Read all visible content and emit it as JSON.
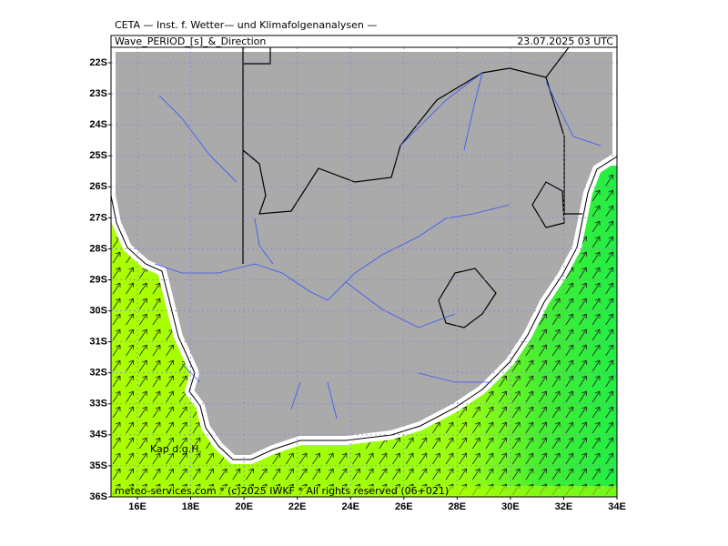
{
  "header": {
    "institute": "CETA — Inst. f. Wetter— und Klimafolgenanalysen —",
    "title": "Wave_PERIOD_[s]_&_Direction",
    "datetime": "23.07.2025 03 UTC"
  },
  "map": {
    "lat_ticks": [
      {
        "value": 22,
        "label": "22S"
      },
      {
        "value": 23,
        "label": "23S"
      },
      {
        "value": 24,
        "label": "24S"
      },
      {
        "value": 25,
        "label": "25S"
      },
      {
        "value": 26,
        "label": "26S"
      },
      {
        "value": 27,
        "label": "27S"
      },
      {
        "value": 28,
        "label": "28S"
      },
      {
        "value": 29,
        "label": "29S"
      },
      {
        "value": 30,
        "label": "30S"
      },
      {
        "value": 31,
        "label": "31S"
      },
      {
        "value": 32,
        "label": "32S"
      },
      {
        "value": 33,
        "label": "33S"
      },
      {
        "value": 34,
        "label": "34S"
      },
      {
        "value": 35,
        "label": "35S"
      },
      {
        "value": 36,
        "label": "36S"
      }
    ],
    "lon_ticks": [
      {
        "value": 16,
        "label": "16E"
      },
      {
        "value": 18,
        "label": "18E"
      },
      {
        "value": 20,
        "label": "20E"
      },
      {
        "value": 22,
        "label": "22E"
      },
      {
        "value": 24,
        "label": "24E"
      },
      {
        "value": 26,
        "label": "26E"
      },
      {
        "value": 28,
        "label": "28E"
      },
      {
        "value": 30,
        "label": "30E"
      },
      {
        "value": 32,
        "label": "32E"
      },
      {
        "value": 34,
        "label": "34E"
      }
    ],
    "place_label": "Kap d.g.H."
  },
  "footer": "meteo-services.com * (c)2025 IWKF * All rights reserved (06+021)"
}
